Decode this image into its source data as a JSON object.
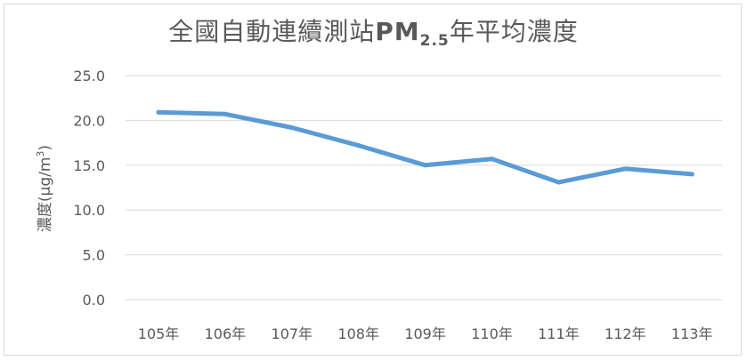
{
  "chart_data": {
    "type": "line",
    "title": {
      "prefix": "全國自動連續測站",
      "pm": "PM",
      "sub": "2.5",
      "suffix": "年平均濃度"
    },
    "ylabel": {
      "main": "濃度(µg/m",
      "sup": "3",
      "close": ")"
    },
    "categories": [
      "105年",
      "106年",
      "107年",
      "108年",
      "109年",
      "110年",
      "111年",
      "112年",
      "113年"
    ],
    "series": [
      {
        "values": [
          20.9,
          20.7,
          19.2,
          17.2,
          15.0,
          15.7,
          13.1,
          14.6,
          14.0
        ]
      }
    ],
    "ylim": [
      0,
      25
    ],
    "yticks": [
      "0.0",
      "5.0",
      "10.0",
      "15.0",
      "20.0",
      "25.0"
    ],
    "grid": true,
    "line_color": "#5b9bd5",
    "grid_color": "#d9d9d9",
    "text_color": "#595959"
  }
}
